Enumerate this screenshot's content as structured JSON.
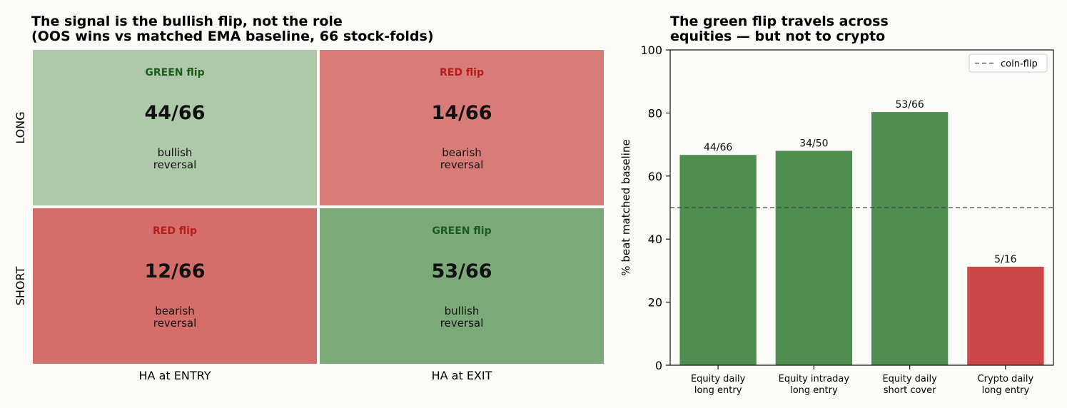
{
  "chart_data": [
    {
      "type": "heatmap",
      "title": "The signal is the bullish flip, not the role\n(OOS wins vs matched EMA baseline, 66 stock-folds)",
      "columns": [
        "HA at ENTRY",
        "HA at EXIT"
      ],
      "rows": [
        "LONG",
        "SHORT"
      ],
      "cells": [
        {
          "row": "LONG",
          "column": "HA at ENTRY",
          "kicker": "GREEN flip",
          "value": "44/66",
          "note": "bullish\nreversal",
          "wins": 44,
          "total": 66,
          "kind": "green"
        },
        {
          "row": "LONG",
          "column": "HA at EXIT",
          "kicker": "RED flip",
          "value": "14/66",
          "note": "bearish\nreversal",
          "wins": 14,
          "total": 66,
          "kind": "red"
        },
        {
          "row": "SHORT",
          "column": "HA at ENTRY",
          "kicker": "RED flip",
          "value": "12/66",
          "note": "bearish\nreversal",
          "wins": 12,
          "total": 66,
          "kind": "red"
        },
        {
          "row": "SHORT",
          "column": "HA at EXIT",
          "kicker": "GREEN flip",
          "value": "53/66",
          "note": "bullish\nreversal",
          "wins": 53,
          "total": 66,
          "kind": "green"
        }
      ],
      "colors": {
        "green_light": "#aec8aa",
        "green_dark": "#7ba97a",
        "red_light": "#d77c78",
        "red_dark": "#d46e6b",
        "green_text": "#1a5c1a",
        "red_text": "#b71c1c"
      }
    },
    {
      "type": "bar",
      "title": "The green flip travels across\nequities — but not to crypto",
      "categories": [
        "Equity daily\nlong entry",
        "Equity intraday\nlong entry",
        "Equity daily\nshort cover",
        "Crypto daily\nlong entry"
      ],
      "values": [
        66.7,
        68.0,
        80.3,
        31.25
      ],
      "bar_labels": [
        "44/66",
        "34/50",
        "53/66",
        "5/16"
      ],
      "bar_colors": [
        "#4e8f4f",
        "#4e8f4f",
        "#4e8f4f",
        "#cc4747"
      ],
      "ylabel": "% beat matched baseline",
      "xlabel": "",
      "ylim": [
        0,
        100
      ],
      "yticks": [
        0,
        20,
        40,
        60,
        80,
        100
      ],
      "reference_line": {
        "y": 50,
        "label": "coin-flip",
        "style": "dashed"
      },
      "legend": "top-right",
      "grid": false
    }
  ]
}
